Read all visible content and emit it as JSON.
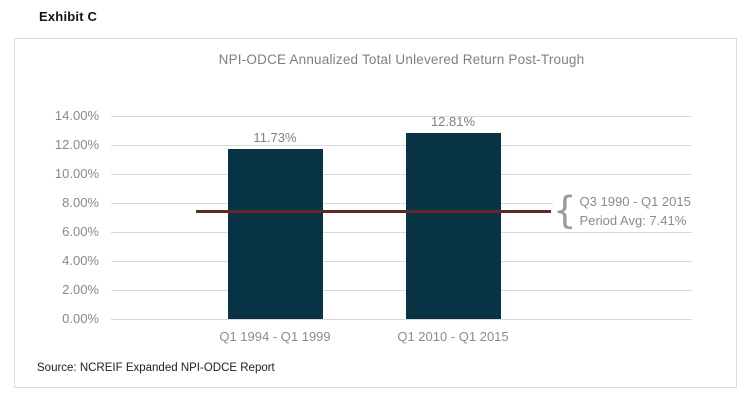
{
  "page": {
    "exhibit_label": "Exhibit C",
    "source_note": "Source: NCREIF Expanded NPI-ODCE Report"
  },
  "chart_data": {
    "type": "bar",
    "title": "NPI-ODCE Annualized Total Unlevered Return Post-Trough",
    "categories": [
      "Q1 1994 - Q1 1999",
      "Q1 2010 - Q1 2015"
    ],
    "values": [
      11.73,
      12.81
    ],
    "value_labels": [
      "11.73%",
      "12.81%"
    ],
    "ylim": [
      0,
      14
    ],
    "yticks": [
      {
        "value": 0,
        "label": "0.00%"
      },
      {
        "value": 2,
        "label": "2.00%"
      },
      {
        "value": 4,
        "label": "4.00%"
      },
      {
        "value": 6,
        "label": "6.00%"
      },
      {
        "value": 8,
        "label": "8.00%"
      },
      {
        "value": 10,
        "label": "10.00%"
      },
      {
        "value": 12,
        "label": "12.00%"
      },
      {
        "value": 14,
        "label": "14.00%"
      }
    ],
    "grid": true,
    "legend": "none",
    "bar_color": "#073344",
    "avg_line": {
      "value": 7.41,
      "color": "#5e2a28",
      "label_line1": "Q3 1990 - Q1 2015",
      "label_line2": "Period Avg: 7.41%"
    }
  }
}
